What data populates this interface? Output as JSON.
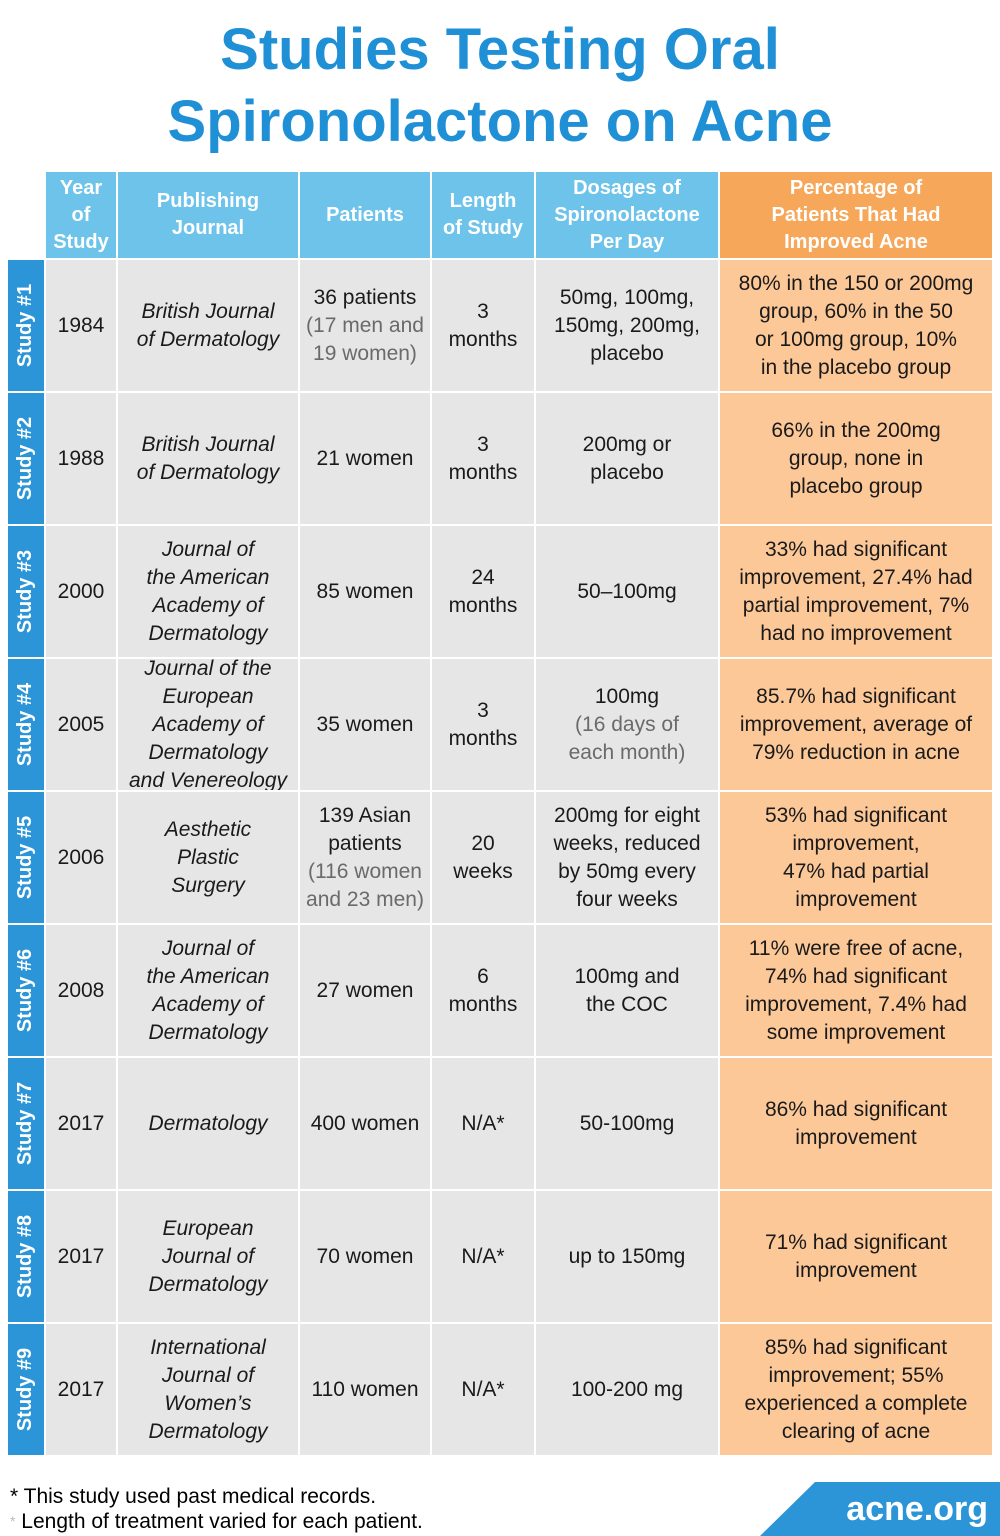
{
  "title": {
    "line1": "Studies Testing Oral",
    "line2": "Spironolactone on Acne"
  },
  "headers": {
    "year": [
      "Year",
      "of",
      "Study"
    ],
    "journal": [
      "Publishing",
      "Journal"
    ],
    "patients": [
      "Patients"
    ],
    "length": [
      "Length",
      "of Study"
    ],
    "dosage": [
      "Dosages of",
      "Spironolactone",
      "Per Day"
    ],
    "percentage": [
      "Percentage of",
      "Patients That Had",
      "Improved Acne"
    ]
  },
  "studies": [
    {
      "label": "Study #1",
      "year": "1984",
      "journal": [
        "British Journal",
        "of Dermatology"
      ],
      "patients": [
        "36 patients"
      ],
      "patients_note": [
        "(17 men and",
        "19 women)"
      ],
      "length": [
        "3",
        "months"
      ],
      "dosage": [
        "50mg, 100mg,",
        "150mg, 200mg,",
        "placebo"
      ],
      "dosage_note": [],
      "result": [
        "80% in the 150 or 200mg",
        "group, 60% in the 50",
        "or 100mg group, 10%",
        "in the placebo group"
      ]
    },
    {
      "label": "Study #2",
      "year": "1988",
      "journal": [
        "British Journal",
        "of Dermatology"
      ],
      "patients": [
        "21 women"
      ],
      "patients_note": [],
      "length": [
        "3",
        "months"
      ],
      "dosage": [
        "200mg or",
        "placebo"
      ],
      "dosage_note": [],
      "result": [
        "66% in the 200mg",
        "group, none in",
        "placebo group"
      ]
    },
    {
      "label": "Study #3",
      "year": "2000",
      "journal": [
        "Journal of",
        "the American",
        "Academy of",
        "Dermatology"
      ],
      "patients": [
        "85 women"
      ],
      "patients_note": [],
      "length": [
        "24",
        "months"
      ],
      "dosage": [
        "50–100mg"
      ],
      "dosage_note": [],
      "result": [
        "33% had significant",
        "improvement, 27.4% had",
        "partial improvement, 7%",
        "had no improvement"
      ]
    },
    {
      "label": "Study #4",
      "year": "2005",
      "journal": [
        "Journal of the",
        "European",
        "Academy of",
        "Dermatology",
        "and Venereology"
      ],
      "patients": [
        "35 women"
      ],
      "patients_note": [],
      "length": [
        "3",
        "months"
      ],
      "dosage": [
        "100mg"
      ],
      "dosage_note": [
        "(16 days of",
        "each month)"
      ],
      "result": [
        "85.7% had significant",
        "improvement, average of",
        "79% reduction in acne"
      ]
    },
    {
      "label": "Study #5",
      "year": "2006",
      "journal": [
        "Aesthetic",
        "Plastic",
        "Surgery"
      ],
      "patients": [
        "139 Asian",
        "patients"
      ],
      "patients_note": [
        "(116 women",
        "and 23 men)"
      ],
      "length": [
        "20",
        "weeks"
      ],
      "dosage": [
        "200mg for eight",
        "weeks, reduced",
        "by 50mg every",
        "four weeks"
      ],
      "dosage_note": [],
      "result": [
        "53% had significant",
        "improvement,",
        "47% had partial",
        "improvement"
      ]
    },
    {
      "label": "Study #6",
      "year": "2008",
      "journal": [
        "Journal of",
        "the American",
        "Academy of",
        "Dermatology"
      ],
      "patients": [
        "27 women"
      ],
      "patients_note": [],
      "length": [
        "6",
        "months"
      ],
      "dosage": [
        "100mg and",
        "the COC"
      ],
      "dosage_note": [],
      "result": [
        "11% were free of acne,",
        "74% had significant",
        "improvement, 7.4% had",
        "some improvement"
      ]
    },
    {
      "label": "Study #7",
      "year": "2017",
      "journal": [
        "Dermatology"
      ],
      "patients": [
        "400 women"
      ],
      "patients_note": [],
      "length": [
        "N/A*"
      ],
      "dosage": [
        "50-100mg"
      ],
      "dosage_note": [],
      "result": [
        "86% had significant",
        "improvement"
      ]
    },
    {
      "label": "Study #8",
      "year": "2017",
      "journal": [
        "European",
        "Journal of",
        "Dermatology"
      ],
      "patients": [
        "70 women"
      ],
      "patients_note": [],
      "length": [
        "N/A*"
      ],
      "dosage": [
        "up to 150mg"
      ],
      "dosage_note": [],
      "result": [
        "71% had significant",
        "improvement"
      ]
    },
    {
      "label": "Study #9",
      "year": "2017",
      "journal": [
        "International",
        "Journal of",
        "Women’s",
        "Dermatology"
      ],
      "patients": [
        "110 women"
      ],
      "patients_note": [],
      "length": [
        "N/A*"
      ],
      "dosage": [
        "100-200 mg"
      ],
      "dosage_note": [],
      "result": [
        "85% had significant",
        "improvement; 55%",
        "experienced a complete",
        "clearing of acne"
      ]
    }
  ],
  "footnote": {
    "line1": "* This study used past medical records.",
    "line2": "Length of treatment varied for each patient."
  },
  "logo": "acne.org",
  "colors": {
    "title": "#1f8fd6",
    "header": "#6dc3ea",
    "header_orange": "#f7a75a",
    "side": "#2b95d8",
    "cell": "#e6e6e6",
    "result": "#fcc898"
  }
}
